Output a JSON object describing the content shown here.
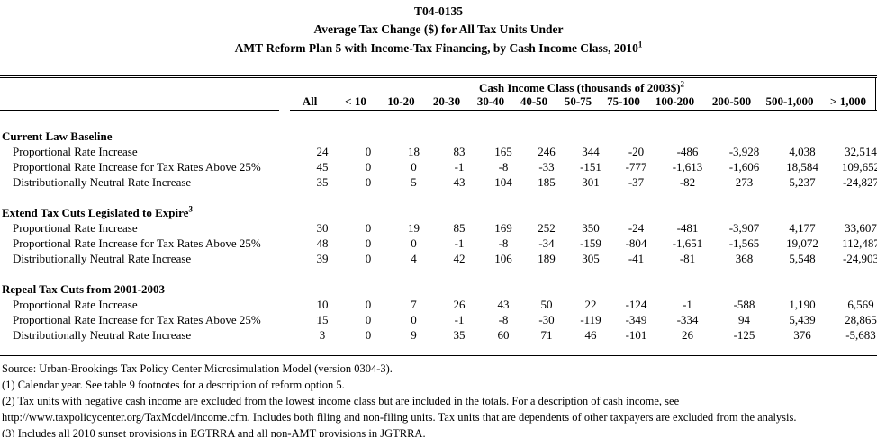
{
  "title": {
    "line1": "T04-0135",
    "line2": "Average Tax Change ($) for All Tax Units Under",
    "line3": "AMT Reform Plan 5 with Income-Tax Financing, by Cash Income Class, 2010",
    "line3_superscript": "1"
  },
  "table": {
    "group_header": {
      "label": "Cash Income Class (thousands of 2003$)",
      "superscript": "2"
    },
    "columns": [
      "All",
      "< 10",
      "10-20",
      "20-30",
      "30-40",
      "40-50",
      "50-75",
      "75-100",
      "100-200",
      "200-500",
      "500-1,000",
      "> 1,000"
    ],
    "sections": [
      {
        "label": "Current Law Baseline",
        "superscript": "",
        "rows": [
          {
            "label": "Proportional Rate Increase",
            "values": [
              "24",
              "0",
              "18",
              "83",
              "165",
              "246",
              "344",
              "-20",
              "-486",
              "-3,928",
              "4,038",
              "32,514"
            ]
          },
          {
            "label": "Proportional Rate Increase for Tax Rates Above 25%",
            "values": [
              "45",
              "0",
              "0",
              "-1",
              "-8",
              "-33",
              "-151",
              "-777",
              "-1,613",
              "-1,606",
              "18,584",
              "109,652"
            ]
          },
          {
            "label": "Distributionally Neutral Rate Increase",
            "values": [
              "35",
              "0",
              "5",
              "43",
              "104",
              "185",
              "301",
              "-37",
              "-82",
              "273",
              "5,237",
              "-24,827"
            ]
          }
        ]
      },
      {
        "label": "Extend Tax Cuts Legislated to Expire",
        "superscript": "3",
        "rows": [
          {
            "label": "Proportional Rate Increase",
            "values": [
              "30",
              "0",
              "19",
              "85",
              "169",
              "252",
              "350",
              "-24",
              "-481",
              "-3,907",
              "4,177",
              "33,607"
            ]
          },
          {
            "label": "Proportional Rate Increase for Tax Rates Above 25%",
            "values": [
              "48",
              "0",
              "0",
              "-1",
              "-8",
              "-34",
              "-159",
              "-804",
              "-1,651",
              "-1,565",
              "19,072",
              "112,487"
            ]
          },
          {
            "label": "Distributionally Neutral Rate Increase",
            "values": [
              "39",
              "0",
              "4",
              "42",
              "106",
              "189",
              "305",
              "-41",
              "-81",
              "368",
              "5,548",
              "-24,903"
            ]
          }
        ]
      },
      {
        "label": "Repeal Tax Cuts from 2001-2003",
        "superscript": "",
        "rows": [
          {
            "label": "Proportional Rate Increase",
            "values": [
              "10",
              "0",
              "7",
              "26",
              "43",
              "50",
              "22",
              "-124",
              "-1",
              "-588",
              "1,190",
              "6,569"
            ]
          },
          {
            "label": "Proportional Rate Increase for Tax Rates Above 25%",
            "values": [
              "15",
              "0",
              "0",
              "-1",
              "-8",
              "-30",
              "-119",
              "-349",
              "-334",
              "94",
              "5,439",
              "28,865"
            ]
          },
          {
            "label": "Distributionally Neutral Rate Increase",
            "values": [
              "3",
              "0",
              "9",
              "35",
              "60",
              "71",
              "46",
              "-101",
              "26",
              "-125",
              "376",
              "-5,683"
            ]
          }
        ]
      }
    ]
  },
  "footnotes": [
    "Source: Urban-Brookings Tax Policy Center Microsimulation Model (version 0304-3).",
    "(1) Calendar year.  See table 9 footnotes for a description of reform option 5.",
    "(2) Tax units with negative cash income are excluded from the lowest income class but are included in the totals. For a description of cash income, see",
    "http://www.taxpolicycenter.org/TaxModel/income.cfm. Includes both filing and non-filing units.  Tax units that are dependents of other taxpayers are excluded from the analysis.",
    "(3) Includes all 2010 sunset provisions in EGTRRA and all non-AMT provisions in JGTRRA."
  ],
  "colors": {
    "text": "#000000",
    "background": "#ffffff",
    "rule": "#000000"
  }
}
